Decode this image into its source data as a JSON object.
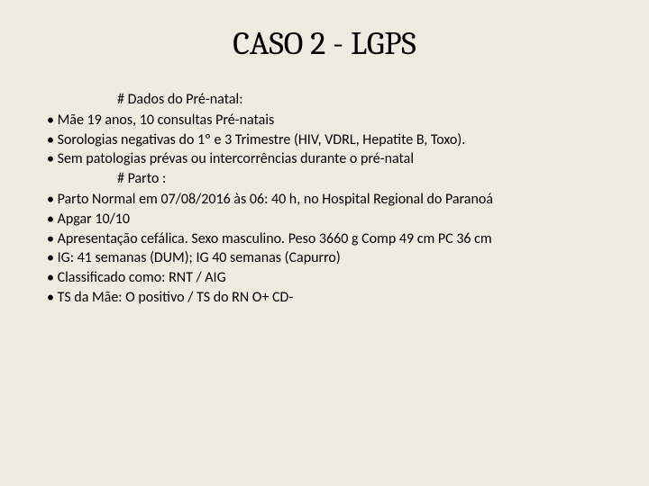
{
  "background_color": "#eeece1",
  "text_color": "#000000",
  "title": "CASO 2 - LGPS",
  "title_fontsize": 36,
  "body_fontsize": 16,
  "sections": [
    {
      "header": "# Dados do Pré-natal:",
      "bullets": [
        "Mãe 19 anos, 10 consultas Pré-natais",
        "Sorologias negativas do 1º e 3 Trimestre (HIV, VDRL, Hepatite B, Toxo).",
        "Sem patologias prévas ou intercorrências durante o pré-natal"
      ]
    },
    {
      "header": "# Parto :",
      "bullets": [
        "Parto Normal em 07/08/2016 às 06: 40 h, no Hospital Regional do Paranoá",
        "Apgar 10/10",
        "Apresentação cefálica. Sexo masculino. Peso 3660 g Comp 49 cm PC 36 cm",
        "IG: 41 semanas (DUM); IG 40 semanas (Capurro)",
        "Classificado como: RNT / AIG",
        "TS da Mãe: O positivo / TS do RN O+ CD-"
      ]
    }
  ]
}
